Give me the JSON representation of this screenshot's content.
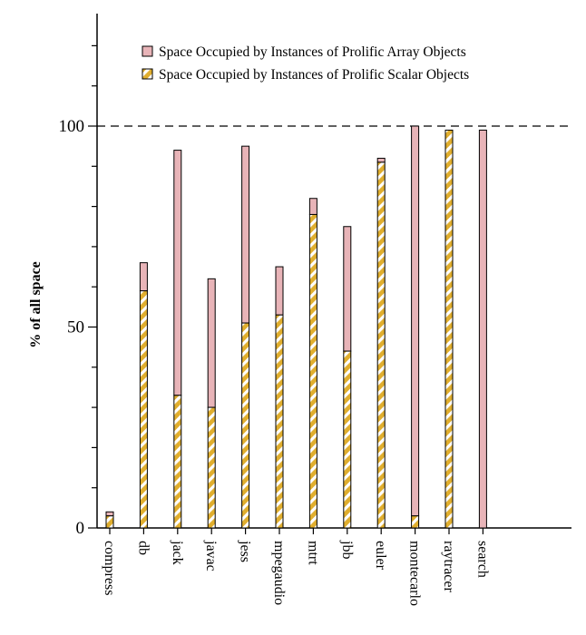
{
  "chart_data": {
    "type": "bar",
    "stacked": true,
    "title": "",
    "xlabel": "",
    "ylabel": "% of all space",
    "ylim": [
      0,
      100
    ],
    "yticks": [
      0,
      50,
      100
    ],
    "reference_line": 100,
    "grid": false,
    "legend_position": "top-right",
    "categories": [
      "compress",
      "db",
      "jack",
      "javac",
      "jess",
      "mpegaudio",
      "mtrt",
      "jbb",
      "euler",
      "montecarlo",
      "raytracer",
      "search"
    ],
    "series": [
      {
        "name": "Space Occupied by Instances of Prolific Scalar Objects",
        "color": "#e0ae2e",
        "pattern": "diagonal-stripes",
        "values": [
          3,
          59,
          33,
          30,
          51,
          53,
          78,
          44,
          91,
          3,
          99,
          0
        ]
      },
      {
        "name": "Space Occupied by Instances of Prolific Array Objects",
        "color": "#e8b4b8",
        "values": [
          1,
          7,
          61,
          32,
          44,
          12,
          4,
          31,
          1,
          97,
          0,
          99
        ]
      }
    ]
  }
}
